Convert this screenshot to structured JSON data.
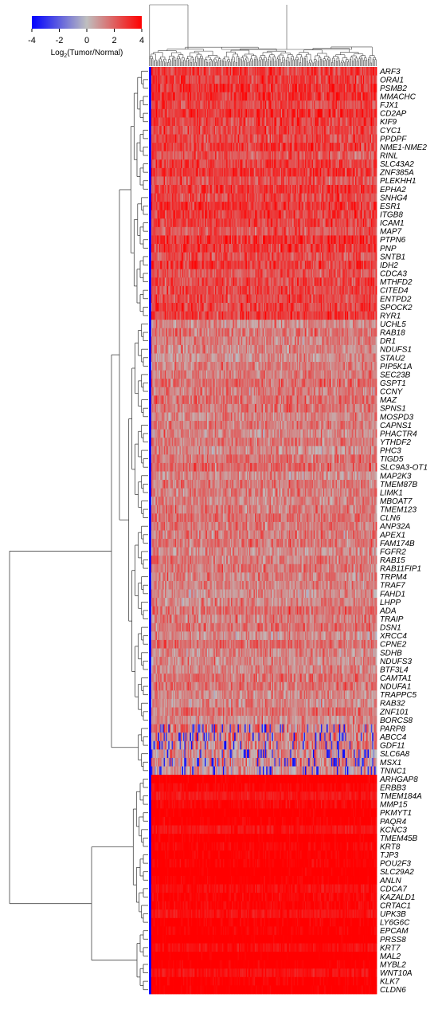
{
  "chart_data": {
    "type": "heatmap",
    "colorbar": {
      "title_prefix": "Log",
      "title_sub": "2",
      "title_suffix": "(Tumor/Normal)",
      "ticks": [
        "-4",
        "-2",
        "0",
        "2",
        "4"
      ],
      "range": [
        -4,
        4
      ],
      "colors": {
        "low": "#0000ff",
        "mid": "#bfbfbf",
        "high": "#ff0000"
      }
    },
    "grid": false,
    "n_samples": 200,
    "rows": [
      {
        "gene": "ARF3",
        "cluster": "A"
      },
      {
        "gene": "ORAI1",
        "cluster": "A"
      },
      {
        "gene": "PSMB2",
        "cluster": "A"
      },
      {
        "gene": "MMACHC",
        "cluster": "A"
      },
      {
        "gene": "FJX1",
        "cluster": "A"
      },
      {
        "gene": "CD2AP",
        "cluster": "A"
      },
      {
        "gene": "KIF9",
        "cluster": "A"
      },
      {
        "gene": "CYC1",
        "cluster": "A"
      },
      {
        "gene": "PPDPF",
        "cluster": "A"
      },
      {
        "gene": "NME1-NME2",
        "cluster": "A"
      },
      {
        "gene": "RINL",
        "cluster": "A"
      },
      {
        "gene": "SLC43A2",
        "cluster": "A"
      },
      {
        "gene": "ZNF385A",
        "cluster": "A"
      },
      {
        "gene": "PLEKHH1",
        "cluster": "A"
      },
      {
        "gene": "EPHA2",
        "cluster": "A"
      },
      {
        "gene": "SNHG4",
        "cluster": "A"
      },
      {
        "gene": "ESR1",
        "cluster": "A"
      },
      {
        "gene": "ITGB8",
        "cluster": "A"
      },
      {
        "gene": "ICAM1",
        "cluster": "A"
      },
      {
        "gene": "MAP7",
        "cluster": "A"
      },
      {
        "gene": "PTPN6",
        "cluster": "A"
      },
      {
        "gene": "PNP",
        "cluster": "A"
      },
      {
        "gene": "SNTB1",
        "cluster": "A"
      },
      {
        "gene": "IDH2",
        "cluster": "A"
      },
      {
        "gene": "CDCA3",
        "cluster": "A"
      },
      {
        "gene": "MTHFD2",
        "cluster": "A"
      },
      {
        "gene": "CITED4",
        "cluster": "A"
      },
      {
        "gene": "ENTPD2",
        "cluster": "A"
      },
      {
        "gene": "SPOCK2",
        "cluster": "A"
      },
      {
        "gene": "RYR1",
        "cluster": "A"
      },
      {
        "gene": "UCHL5",
        "cluster": "B"
      },
      {
        "gene": "RAB18",
        "cluster": "B"
      },
      {
        "gene": "DR1",
        "cluster": "B"
      },
      {
        "gene": "NDUFS1",
        "cluster": "B"
      },
      {
        "gene": "STAU2",
        "cluster": "B"
      },
      {
        "gene": "PIP5K1A",
        "cluster": "B"
      },
      {
        "gene": "SEC23B",
        "cluster": "B"
      },
      {
        "gene": "GSPT1",
        "cluster": "B"
      },
      {
        "gene": "CCNY",
        "cluster": "B"
      },
      {
        "gene": "MAZ",
        "cluster": "B"
      },
      {
        "gene": "SPNS1",
        "cluster": "B"
      },
      {
        "gene": "MOSPD3",
        "cluster": "B"
      },
      {
        "gene": "CAPNS1",
        "cluster": "B"
      },
      {
        "gene": "PHACTR4",
        "cluster": "B"
      },
      {
        "gene": "YTHDF2",
        "cluster": "B"
      },
      {
        "gene": "PHC3",
        "cluster": "B"
      },
      {
        "gene": "TIGD5",
        "cluster": "B"
      },
      {
        "gene": "SLC9A3-OT1",
        "cluster": "B"
      },
      {
        "gene": "MAP2K3",
        "cluster": "B"
      },
      {
        "gene": "TMEM87B",
        "cluster": "B"
      },
      {
        "gene": "LIMK1",
        "cluster": "B"
      },
      {
        "gene": "MBOAT7",
        "cluster": "B"
      },
      {
        "gene": "TMEM123",
        "cluster": "B"
      },
      {
        "gene": "CLN6",
        "cluster": "B"
      },
      {
        "gene": "ANP32A",
        "cluster": "B"
      },
      {
        "gene": "APEX1",
        "cluster": "B"
      },
      {
        "gene": "FAM174B",
        "cluster": "B"
      },
      {
        "gene": "FGFR2",
        "cluster": "B"
      },
      {
        "gene": "RAB15",
        "cluster": "B"
      },
      {
        "gene": "RAB11FIP1",
        "cluster": "B"
      },
      {
        "gene": "TRPM4",
        "cluster": "B"
      },
      {
        "gene": "TRAF7",
        "cluster": "B"
      },
      {
        "gene": "FAHD1",
        "cluster": "B"
      },
      {
        "gene": "LHPP",
        "cluster": "B"
      },
      {
        "gene": "ADA",
        "cluster": "B"
      },
      {
        "gene": "TRAIP",
        "cluster": "B"
      },
      {
        "gene": "DSN1",
        "cluster": "B"
      },
      {
        "gene": "XRCC4",
        "cluster": "B"
      },
      {
        "gene": "CPNE2",
        "cluster": "B"
      },
      {
        "gene": "SDHB",
        "cluster": "B"
      },
      {
        "gene": "NDUFS3",
        "cluster": "B"
      },
      {
        "gene": "BTF3L4",
        "cluster": "B"
      },
      {
        "gene": "CAMTA1",
        "cluster": "B"
      },
      {
        "gene": "NDUFA1",
        "cluster": "B"
      },
      {
        "gene": "TRAPPC5",
        "cluster": "B"
      },
      {
        "gene": "RAB32",
        "cluster": "B"
      },
      {
        "gene": "ZNF101",
        "cluster": "B"
      },
      {
        "gene": "BORCS8",
        "cluster": "B"
      },
      {
        "gene": "PARP8",
        "cluster": "C"
      },
      {
        "gene": "ABCC4",
        "cluster": "C"
      },
      {
        "gene": "GDF11",
        "cluster": "C"
      },
      {
        "gene": "SLC6A8",
        "cluster": "C"
      },
      {
        "gene": "MSX1",
        "cluster": "C"
      },
      {
        "gene": "TNNC1",
        "cluster": "C"
      },
      {
        "gene": "ARHGAP8",
        "cluster": "D"
      },
      {
        "gene": "ERBB3",
        "cluster": "D"
      },
      {
        "gene": "TMEM184A",
        "cluster": "D"
      },
      {
        "gene": "MMP15",
        "cluster": "D"
      },
      {
        "gene": "PKMYT1",
        "cluster": "D"
      },
      {
        "gene": "PAQR4",
        "cluster": "D"
      },
      {
        "gene": "KCNC3",
        "cluster": "D"
      },
      {
        "gene": "TMEM45B",
        "cluster": "D"
      },
      {
        "gene": "KRT8",
        "cluster": "D"
      },
      {
        "gene": "TJP3",
        "cluster": "D"
      },
      {
        "gene": "POU2F3",
        "cluster": "D"
      },
      {
        "gene": "SLC29A2",
        "cluster": "D"
      },
      {
        "gene": "ANLN",
        "cluster": "D"
      },
      {
        "gene": "CDCA7",
        "cluster": "D"
      },
      {
        "gene": "KAZALD1",
        "cluster": "D"
      },
      {
        "gene": "CRTAC1",
        "cluster": "D"
      },
      {
        "gene": "UPK3B",
        "cluster": "D"
      },
      {
        "gene": "LY6G6C",
        "cluster": "D"
      },
      {
        "gene": "EPCAM",
        "cluster": "E"
      },
      {
        "gene": "PRSS8",
        "cluster": "E"
      },
      {
        "gene": "KRT7",
        "cluster": "E"
      },
      {
        "gene": "MAL2",
        "cluster": "E"
      },
      {
        "gene": "MYBL2",
        "cluster": "E"
      },
      {
        "gene": "WNT10A",
        "cluster": "E"
      },
      {
        "gene": "KLK7",
        "cluster": "E"
      },
      {
        "gene": "CLDN6",
        "cluster": "E"
      }
    ],
    "cluster_levels": {
      "A": 2.6,
      "B": 1.4,
      "C": 1.2,
      "D": 3.9,
      "E": 4.0
    }
  }
}
